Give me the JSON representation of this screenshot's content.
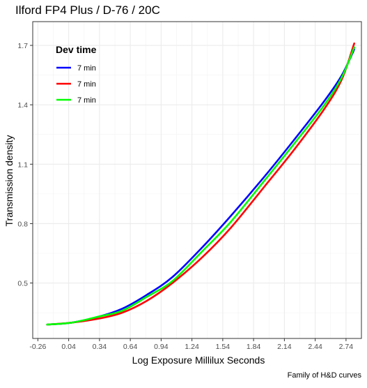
{
  "chart_data": {
    "type": "line",
    "title": "Ilford FP4 Plus / D-76 / 20C",
    "xlabel": "Log Exposure Millilux Seconds",
    "ylabel": "Transmission density",
    "caption": "Family of H&D curves",
    "xlim": [
      -0.31,
      2.89
    ],
    "ylim": [
      0.22,
      1.82
    ],
    "x_ticks": [
      -0.26,
      0.04,
      0.34,
      0.64,
      0.94,
      1.24,
      1.54,
      1.84,
      2.14,
      2.44,
      2.74
    ],
    "x_tick_labels": [
      "-0.26",
      "0.04",
      "0.34",
      "0.64",
      "0.94",
      "1.24",
      "1.54",
      "1.84",
      "2.14",
      "2.44",
      "2.74"
    ],
    "y_ticks": [
      0.5,
      0.8,
      1.1,
      1.4,
      1.7
    ],
    "y_tick_labels": [
      "0.5",
      "0.8",
      "1.1",
      "1.4",
      "1.7"
    ],
    "grid": true,
    "legend": {
      "title": "Dev time",
      "position": "top-left"
    },
    "series": [
      {
        "name": "7 min",
        "color": "#0000ff",
        "x": [
          -0.17,
          0.07,
          0.33,
          0.56,
          0.8,
          1.05,
          1.34,
          1.62,
          1.95,
          2.23,
          2.53,
          2.7,
          2.82
        ],
        "y": [
          0.29,
          0.3,
          0.33,
          0.37,
          0.44,
          0.53,
          0.68,
          0.84,
          1.04,
          1.22,
          1.42,
          1.55,
          1.68
        ]
      },
      {
        "name": "7 min",
        "color": "#ff0000",
        "x": [
          -0.17,
          0.07,
          0.33,
          0.56,
          0.8,
          1.05,
          1.34,
          1.62,
          1.95,
          2.23,
          2.53,
          2.7,
          2.82
        ],
        "y": [
          0.29,
          0.3,
          0.32,
          0.35,
          0.41,
          0.5,
          0.63,
          0.78,
          0.99,
          1.17,
          1.38,
          1.53,
          1.71
        ]
      },
      {
        "name": "7 min",
        "color": "#00ff00",
        "x": [
          -0.17,
          0.07,
          0.33,
          0.56,
          0.8,
          1.05,
          1.34,
          1.62,
          1.95,
          2.23,
          2.53,
          2.7,
          2.82
        ],
        "y": [
          0.29,
          0.3,
          0.33,
          0.36,
          0.43,
          0.51,
          0.66,
          0.81,
          1.02,
          1.2,
          1.4,
          1.54,
          1.69
        ]
      }
    ]
  }
}
